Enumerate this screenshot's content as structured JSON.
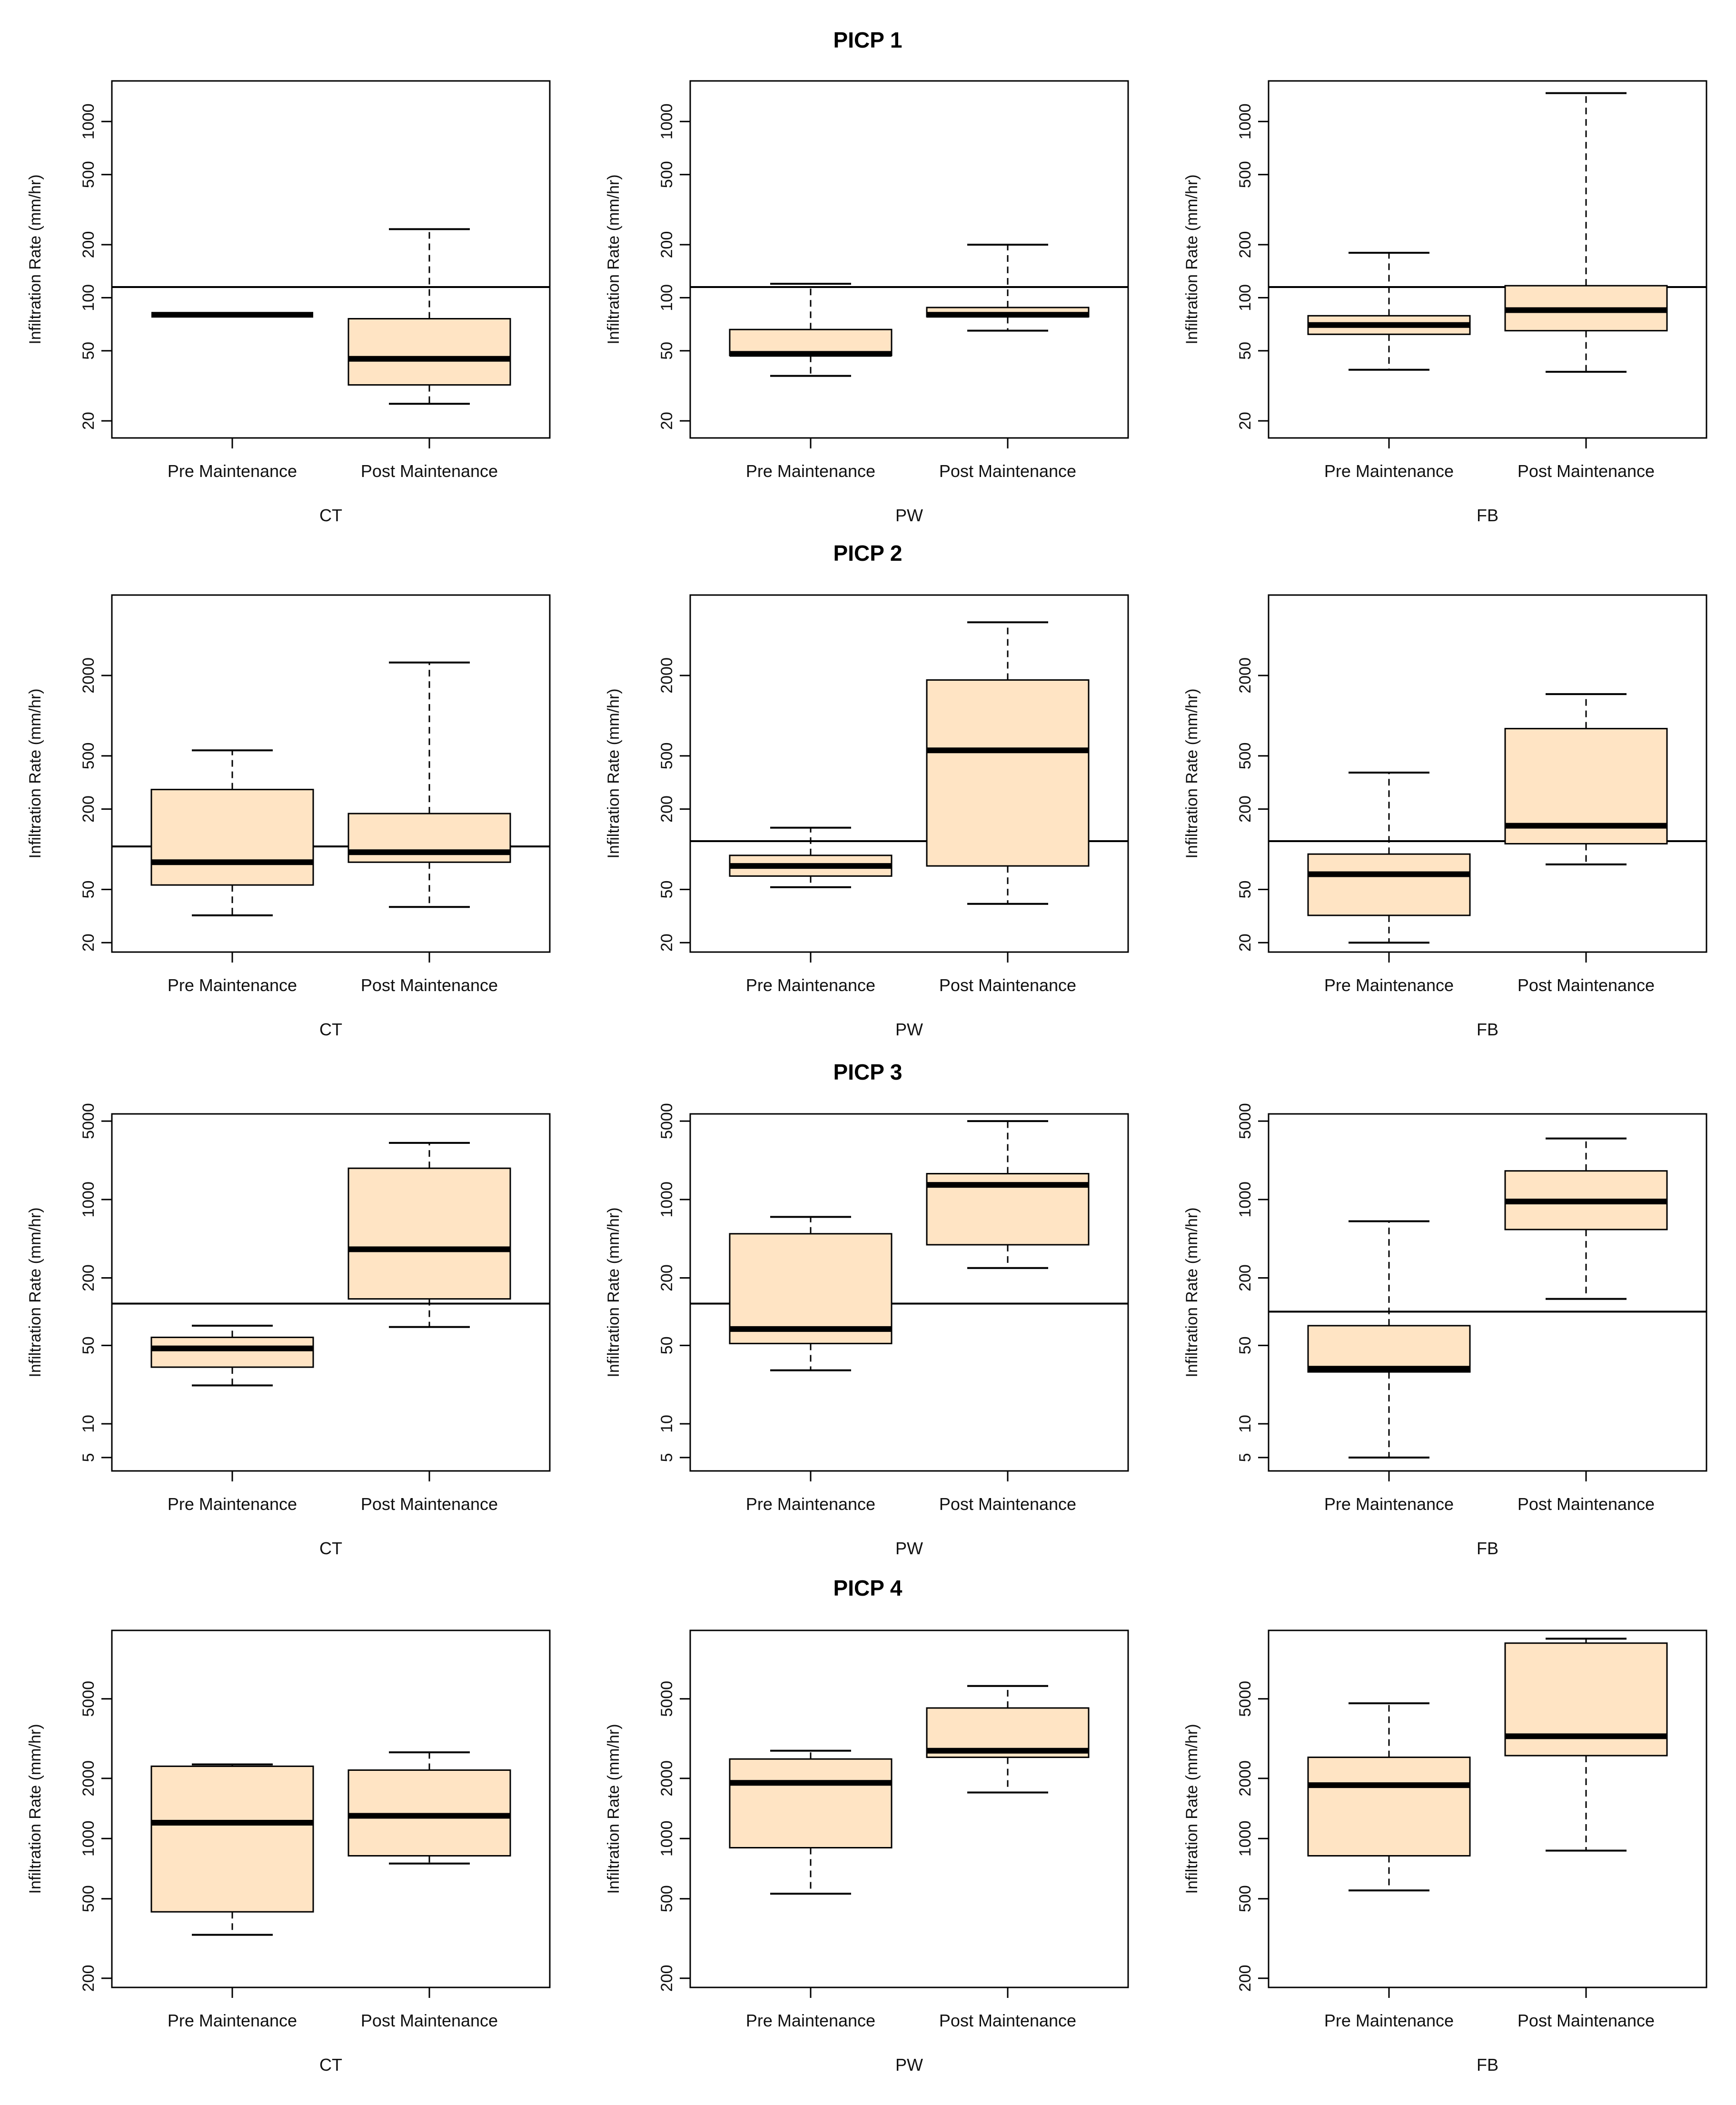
{
  "figure": {
    "box_fill": "#FFE4C4",
    "line_color": "#000000",
    "y_axis_label": "Infiltration Rate (mm/hr)",
    "category_labels": [
      "Pre Maintenance",
      "Post Maintenance"
    ],
    "rows": [
      {
        "title": "PICP 1",
        "yticks": [
          20,
          50,
          100,
          200,
          500,
          1000
        ],
        "ylim": [
          16,
          1700
        ],
        "panels": [
          {
            "xlabel": "CT",
            "reference": 115,
            "boxes": [
              {
                "label": "Pre Maintenance",
                "whisker_low": 80,
                "q1": 80,
                "median": 80,
                "q3": 80,
                "whisker_high": 80
              },
              {
                "label": "Post Maintenance",
                "whisker_low": 25,
                "q1": 32,
                "median": 45,
                "q3": 76,
                "whisker_high": 245
              }
            ]
          },
          {
            "xlabel": "PW",
            "reference": 115,
            "boxes": [
              {
                "label": "Pre Maintenance",
                "whisker_low": 36,
                "q1": 47,
                "median": 48,
                "q3": 66,
                "whisker_high": 120
              },
              {
                "label": "Post Maintenance",
                "whisker_low": 65,
                "q1": 78,
                "median": 80,
                "q3": 88,
                "whisker_high": 200
              }
            ]
          },
          {
            "xlabel": "FB",
            "reference": 115,
            "boxes": [
              {
                "label": "Pre Maintenance",
                "whisker_low": 39,
                "q1": 62,
                "median": 70,
                "q3": 79,
                "whisker_high": 180
              },
              {
                "label": "Post Maintenance",
                "whisker_low": 38,
                "q1": 65,
                "median": 85,
                "q3": 117,
                "whisker_high": 1450
              }
            ]
          }
        ]
      },
      {
        "title": "PICP 2",
        "yticks": [
          20,
          50,
          200,
          500,
          2000
        ],
        "ylim": [
          17,
          8000
        ],
        "panels": [
          {
            "xlabel": "CT",
            "reference": 105,
            "boxes": [
              {
                "label": "Pre Maintenance",
                "whisker_low": 32,
                "q1": 54,
                "median": 80,
                "q3": 280,
                "whisker_high": 550
              },
              {
                "label": "Post Maintenance",
                "whisker_low": 37,
                "q1": 80,
                "median": 95,
                "q3": 185,
                "whisker_high": 2500
              }
            ]
          },
          {
            "xlabel": "PW",
            "reference": 115,
            "boxes": [
              {
                "label": "Pre Maintenance",
                "whisker_low": 52,
                "q1": 63,
                "median": 75,
                "q3": 90,
                "whisker_high": 145
              },
              {
                "label": "Post Maintenance",
                "whisker_low": 39,
                "q1": 75,
                "median": 550,
                "q3": 1850,
                "whisker_high": 5000
              }
            ]
          },
          {
            "xlabel": "FB",
            "reference": 115,
            "boxes": [
              {
                "label": "Pre Maintenance",
                "whisker_low": 20,
                "q1": 32,
                "median": 65,
                "q3": 92,
                "whisker_high": 375
              },
              {
                "label": "Post Maintenance",
                "whisker_low": 77,
                "q1": 110,
                "median": 150,
                "q3": 800,
                "whisker_high": 1450
              }
            ]
          }
        ]
      },
      {
        "title": "PICP 3",
        "yticks": [
          5,
          10,
          50,
          200,
          1000,
          5000
        ],
        "ylim": [
          3.8,
          5800
        ],
        "panels": [
          {
            "xlabel": "CT",
            "reference": 118,
            "boxes": [
              {
                "label": "Pre Maintenance",
                "whisker_low": 22,
                "q1": 32,
                "median": 47,
                "q3": 59,
                "whisker_high": 75
              },
              {
                "label": "Post Maintenance",
                "whisker_low": 73,
                "q1": 130,
                "median": 360,
                "q3": 1900,
                "whisker_high": 3200
              }
            ]
          },
          {
            "xlabel": "PW",
            "reference": 118,
            "boxes": [
              {
                "label": "Pre Maintenance",
                "whisker_low": 30,
                "q1": 52,
                "median": 70,
                "q3": 495,
                "whisker_high": 700
              },
              {
                "label": "Post Maintenance",
                "whisker_low": 245,
                "q1": 395,
                "median": 1350,
                "q3": 1700,
                "whisker_high": 5000
              }
            ]
          },
          {
            "xlabel": "FB",
            "reference": 100,
            "boxes": [
              {
                "label": "Pre Maintenance",
                "whisker_low": 5,
                "q1": 29,
                "median": 31,
                "q3": 75,
                "whisker_high": 640
              },
              {
                "label": "Post Maintenance",
                "whisker_low": 130,
                "q1": 540,
                "median": 960,
                "q3": 1800,
                "whisker_high": 3500
              }
            ]
          }
        ]
      },
      {
        "title": "PICP 4",
        "yticks": [
          200,
          500,
          1000,
          2000,
          5000
        ],
        "ylim": [
          180,
          11000
        ],
        "panels": [
          {
            "xlabel": "CT",
            "boxes": [
              {
                "label": "Pre Maintenance",
                "whisker_low": 330,
                "q1": 430,
                "median": 1200,
                "q3": 2300,
                "whisker_high": 2350
              },
              {
                "label": "Post Maintenance",
                "whisker_low": 750,
                "q1": 820,
                "median": 1300,
                "q3": 2200,
                "whisker_high": 2700
              }
            ]
          },
          {
            "xlabel": "PW",
            "boxes": [
              {
                "label": "Pre Maintenance",
                "whisker_low": 530,
                "q1": 900,
                "median": 1900,
                "q3": 2500,
                "whisker_high": 2750
              },
              {
                "label": "Post Maintenance",
                "whisker_low": 1700,
                "q1": 2550,
                "median": 2750,
                "q3": 4500,
                "whisker_high": 5800
              }
            ]
          },
          {
            "xlabel": "FB",
            "boxes": [
              {
                "label": "Pre Maintenance",
                "whisker_low": 550,
                "q1": 820,
                "median": 1850,
                "q3": 2550,
                "whisker_high": 4750
              },
              {
                "label": "Post Maintenance",
                "whisker_low": 870,
                "q1": 2600,
                "median": 3250,
                "q3": 9500,
                "whisker_high": 10000
              }
            ]
          }
        ]
      }
    ]
  },
  "chart_data": [
    {
      "type": "boxplot",
      "title": "PICP 1",
      "scale": "log",
      "ylabel": "Infiltration Rate (mm/hr)",
      "categories": [
        "Pre Maintenance",
        "Post Maintenance"
      ],
      "panels": [
        "CT",
        "PW",
        "FB"
      ],
      "reference_lines": [
        115,
        115,
        115
      ]
    },
    {
      "type": "boxplot",
      "title": "PICP 2",
      "scale": "log",
      "ylabel": "Infiltration Rate (mm/hr)",
      "categories": [
        "Pre Maintenance",
        "Post Maintenance"
      ],
      "panels": [
        "CT",
        "PW",
        "FB"
      ],
      "reference_lines": [
        105,
        115,
        115
      ]
    },
    {
      "type": "boxplot",
      "title": "PICP 3",
      "scale": "log",
      "ylabel": "Infiltration Rate (mm/hr)",
      "categories": [
        "Pre Maintenance",
        "Post Maintenance"
      ],
      "panels": [
        "CT",
        "PW",
        "FB"
      ],
      "reference_lines": [
        118,
        118,
        100
      ]
    },
    {
      "type": "boxplot",
      "title": "PICP 4",
      "scale": "log",
      "ylabel": "Infiltration Rate (mm/hr)",
      "categories": [
        "Pre Maintenance",
        "Post Maintenance"
      ],
      "panels": [
        "CT",
        "PW",
        "FB"
      ],
      "reference_lines": []
    }
  ]
}
